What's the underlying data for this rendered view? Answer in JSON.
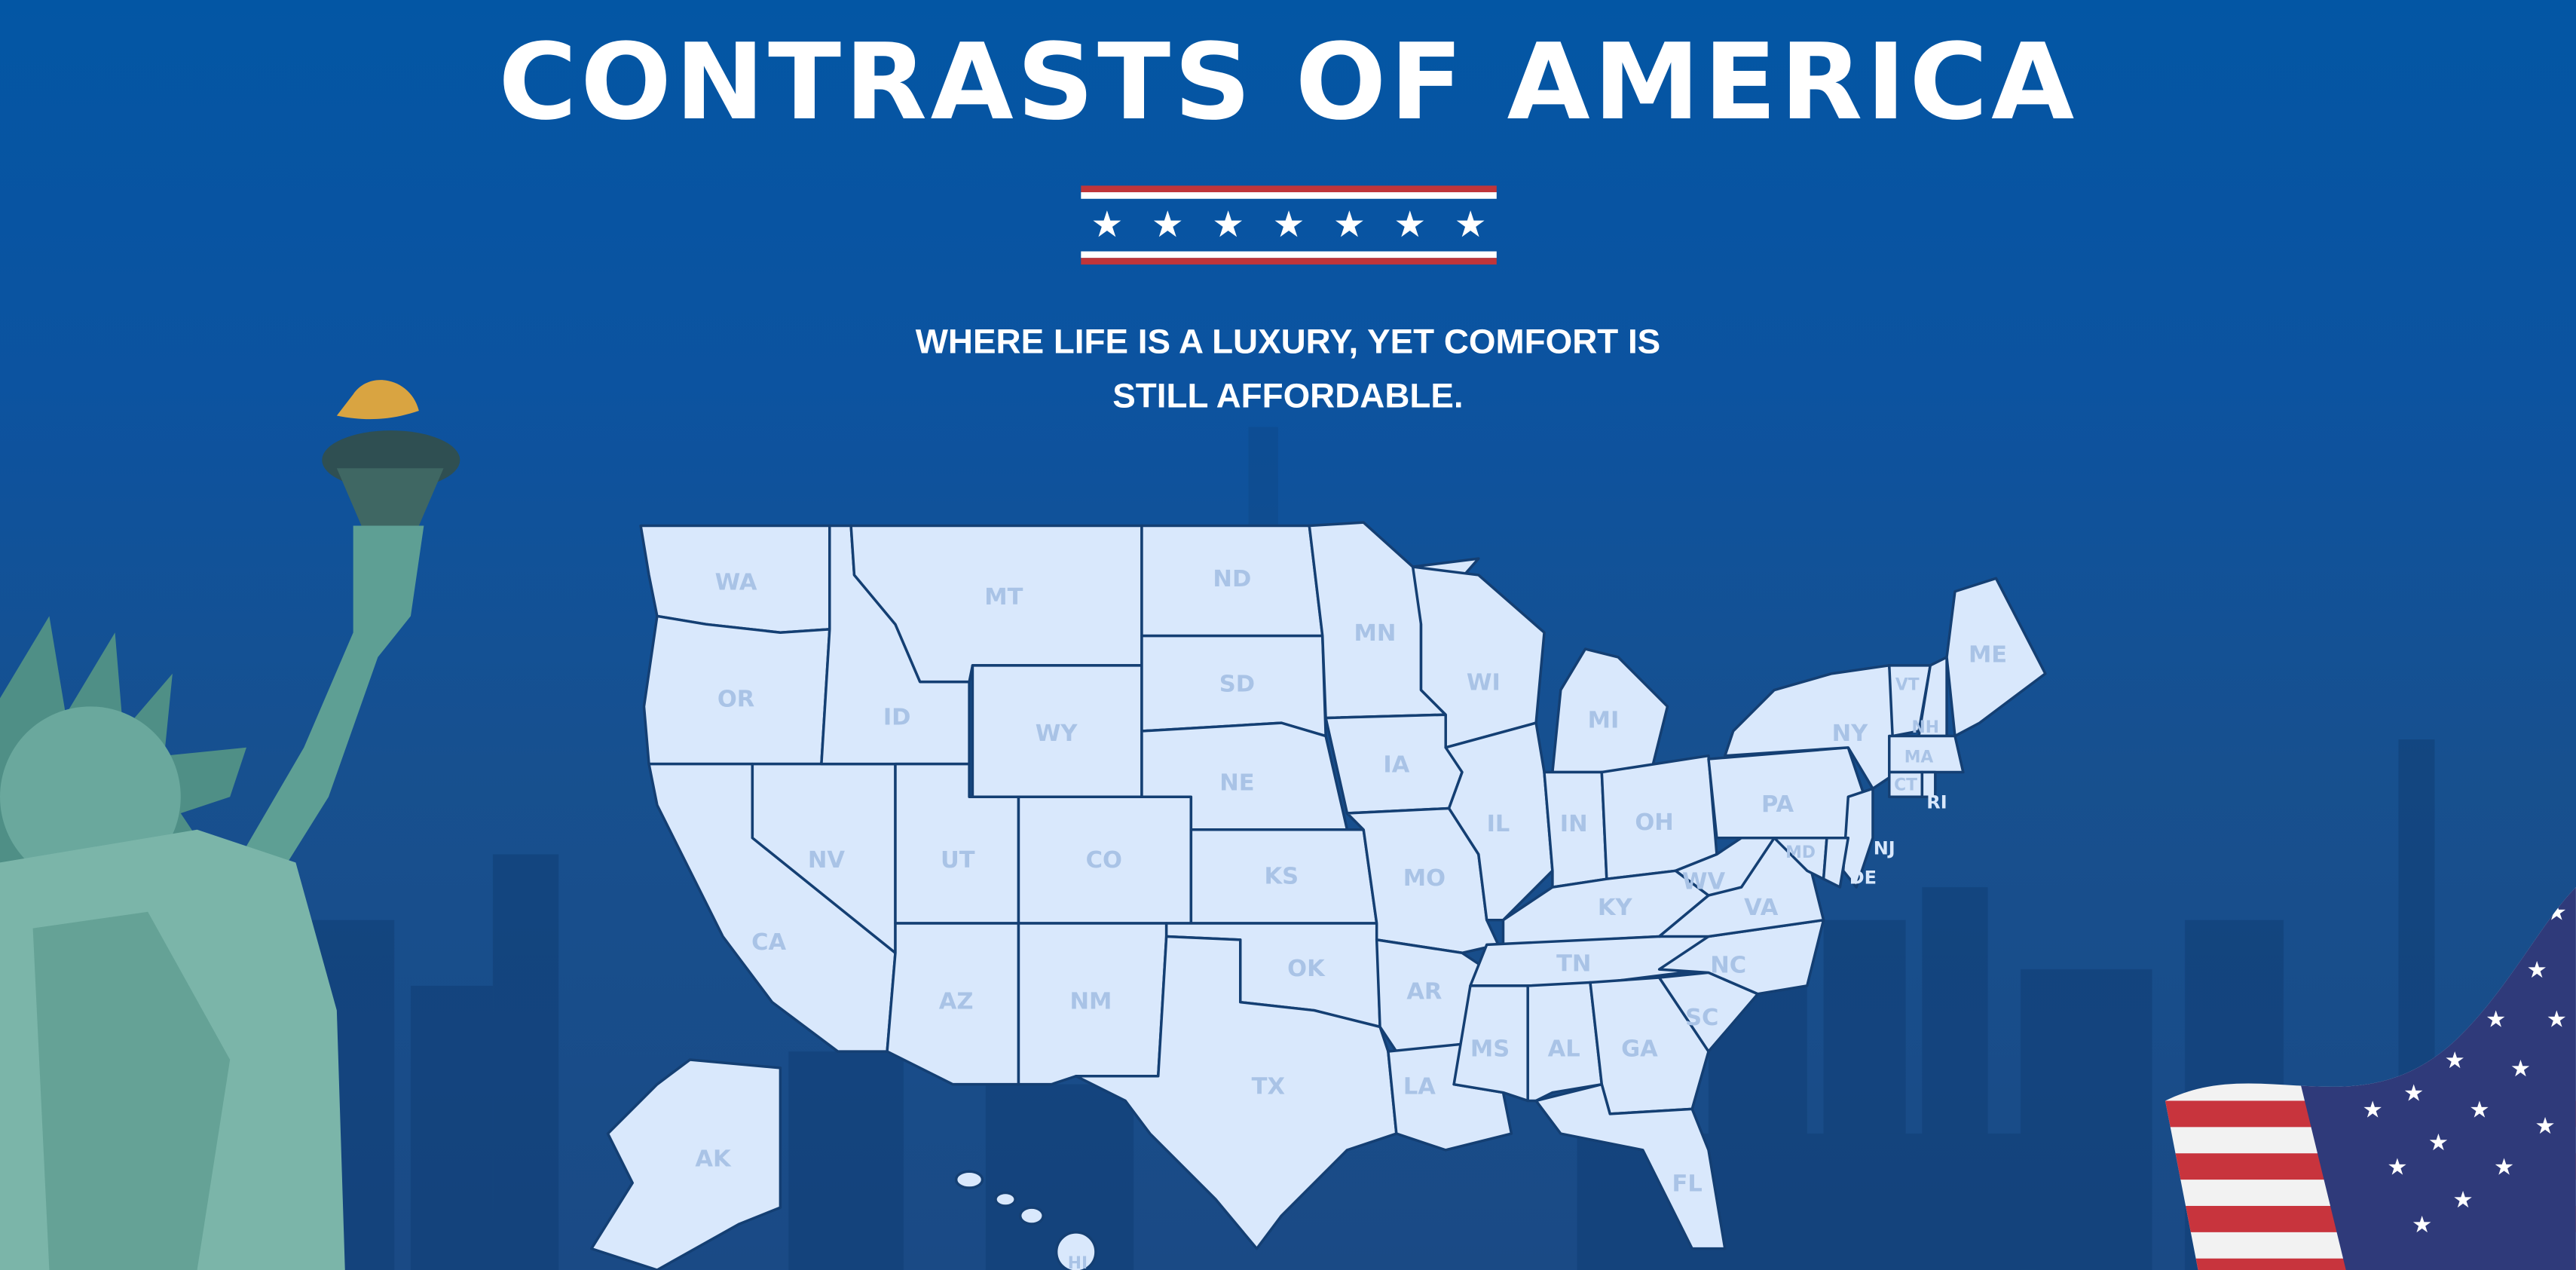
{
  "header": {
    "title": "CONTRASTS OF AMERICA",
    "subtitle_line1": "WHERE LIFE IS A LUXURY, YET COMFORT IS",
    "subtitle_line2": "STILL AFFORDABLE.",
    "divider_stars": [
      "★",
      "★",
      "★",
      "★",
      "★",
      "★",
      "★"
    ]
  },
  "colors": {
    "background": "#0356a4",
    "state_fill": "#d9e8fc",
    "state_border": "#143f73",
    "label": "#a9c3e6",
    "stripe_red": "#c0353a"
  },
  "map": {
    "states": [
      "WA",
      "OR",
      "CA",
      "NV",
      "ID",
      "MT",
      "WY",
      "UT",
      "CO",
      "AZ",
      "NM",
      "ND",
      "SD",
      "NE",
      "KS",
      "OK",
      "TX",
      "MN",
      "IA",
      "MO",
      "AR",
      "LA",
      "WI",
      "IL",
      "MI",
      "IN",
      "OH",
      "KY",
      "TN",
      "MS",
      "AL",
      "GA",
      "FL",
      "SC",
      "NC",
      "VA",
      "WV",
      "PA",
      "NY",
      "NJ",
      "DE",
      "MD",
      "VT",
      "NH",
      "ME",
      "MA",
      "CT",
      "RI",
      "AK",
      "HI"
    ]
  },
  "decorations": {
    "left": "statue-of-liberty",
    "right": "american-flag"
  }
}
